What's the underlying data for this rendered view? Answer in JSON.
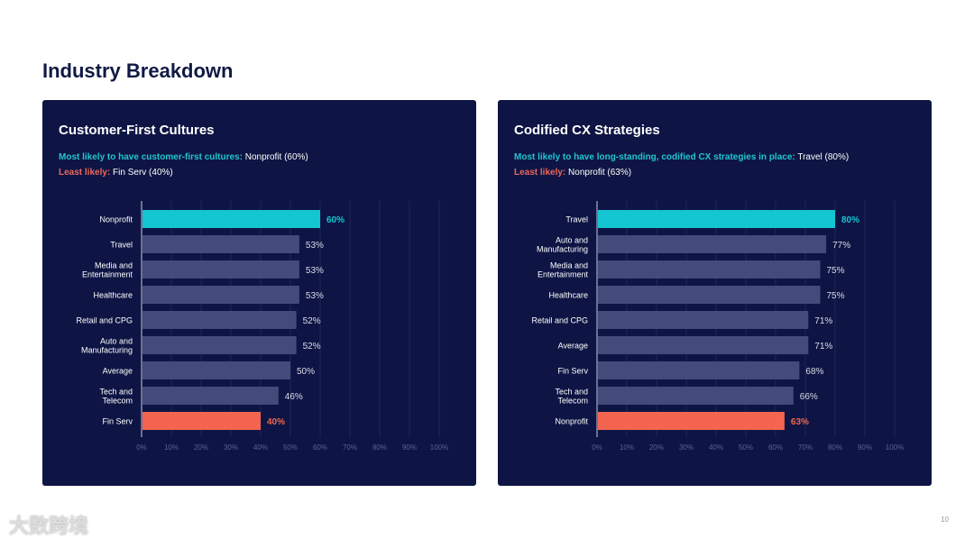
{
  "page_title": "Industry Breakdown",
  "page_number": "10",
  "watermark": "大数跨境",
  "colors": {
    "highlight_high": "#13c6d1",
    "highlight_low": "#f3654f",
    "bar": "#424b7a",
    "panel": "#0e1544"
  },
  "chart_data": [
    {
      "type": "bar",
      "orientation": "horizontal",
      "title": "Customer-First Cultures",
      "note_most_label": "Most likely to have customer-first cultures:",
      "note_most_value": "Nonprofit (60%)",
      "note_least_label": "Least likely:",
      "note_least_value": "Fin Serv (40%)",
      "categories": [
        "Nonprofit",
        "Travel",
        "Media and Entertainment",
        "Healthcare",
        "Retail and CPG",
        "Auto and Manufacturing",
        "Average",
        "Tech and Telecom",
        "Fin Serv"
      ],
      "values": [
        60,
        53,
        53,
        53,
        52,
        52,
        50,
        46,
        40
      ],
      "value_labels": [
        "60%",
        "53%",
        "53%",
        "53%",
        "52%",
        "52%",
        "50%",
        "46%",
        "40%"
      ],
      "highlight": [
        "high",
        "",
        "",
        "",
        "",
        "",
        "",
        "",
        "low"
      ],
      "xlim": [
        0,
        100
      ],
      "xticks": [
        "0%",
        "10%",
        "20%",
        "30%",
        "40%",
        "50%",
        "60%",
        "70%",
        "80%",
        "90%",
        "100%"
      ],
      "grid": true
    },
    {
      "type": "bar",
      "orientation": "horizontal",
      "title": "Codified CX Strategies",
      "note_most_label": "Most likely to have long-standing, codified CX strategies in place:",
      "note_most_value": "Travel (80%)",
      "note_least_label": "Least likely:",
      "note_least_value": "Nonprofit (63%)",
      "categories": [
        "Travel",
        "Auto and Manufacturing",
        "Media and Entertainment",
        "Healthcare",
        "Retail and CPG",
        "Average",
        "Fin Serv",
        "Tech and Telecom",
        "Nonprofit"
      ],
      "values": [
        80,
        77,
        75,
        75,
        71,
        71,
        68,
        66,
        63
      ],
      "value_labels": [
        "80%",
        "77%",
        "75%",
        "75%",
        "71%",
        "71%",
        "68%",
        "66%",
        "63%"
      ],
      "highlight": [
        "high",
        "",
        "",
        "",
        "",
        "",
        "",
        "",
        "low"
      ],
      "xlim": [
        0,
        100
      ],
      "xticks": [
        "0%",
        "10%",
        "20%",
        "30%",
        "40%",
        "50%",
        "60%",
        "70%",
        "80%",
        "90%",
        "100%"
      ],
      "grid": true
    }
  ]
}
